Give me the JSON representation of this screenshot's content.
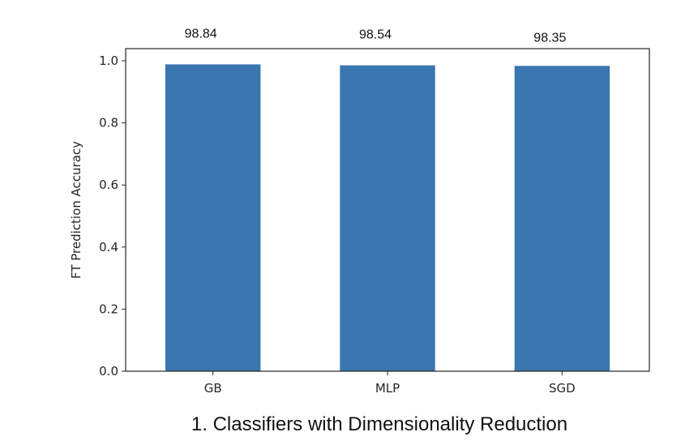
{
  "chart_data": {
    "type": "bar",
    "categories": [
      "GB",
      "MLP",
      "SGD"
    ],
    "values": [
      0.9884,
      0.9854,
      0.9835
    ],
    "data_labels": [
      "98.84",
      "98.54",
      "98.35"
    ],
    "title": "",
    "xlabel": "",
    "ylabel": "FT Prediction Accuracy",
    "ylim": [
      0.0,
      1.0
    ],
    "yticks": [
      0.0,
      0.2,
      0.4,
      0.6,
      0.8,
      1.0
    ],
    "ytick_labels": [
      "0.0",
      "0.2",
      "0.4",
      "0.6",
      "0.8",
      "1.0"
    ],
    "grid": false,
    "bar_color": "#3a76af",
    "caption": "1. Classifiers with Dimensionality Reduction"
  }
}
